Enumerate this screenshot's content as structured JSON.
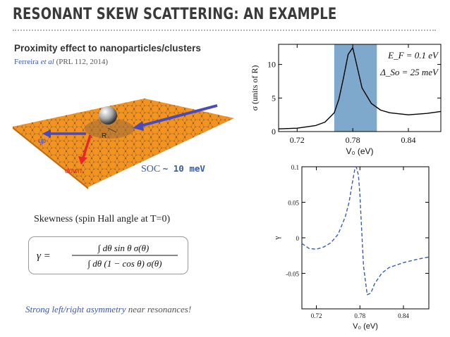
{
  "slide": {
    "title": "RESONANT SKEW SCATTERING: AN EXAMPLE",
    "subtitle": "Proximity effect to nanoparticles/clusters",
    "reference": {
      "authors": "Ferreira ",
      "etal": "et al",
      "journal": " (PRL 112, 2014)"
    },
    "soc_label": "SOC ",
    "soc_value": "~ 10 meV",
    "skewness_label": "Skewness (spin Hall angle at T=0)",
    "conclusion_emph": "Strong left/right asymmetry",
    "conclusion_tail": " near resonances!"
  },
  "illustration": {
    "label_up": "up",
    "label_down": "down",
    "label_R": "R",
    "colors": {
      "sheet": "#f39420",
      "arrow_in": "#4a4ab8",
      "arrow_down": "#e8262a",
      "cluster": "#bfc0c0"
    }
  },
  "formula": {
    "lhs": "γ =",
    "numerator": "∫ dθ  sin θ  σ(θ)",
    "denominator": "∫ dθ (1 − cos θ) σ(θ)"
  },
  "chart_data": [
    {
      "type": "line",
      "xlabel": "V₀  (eV)",
      "ylabel": "σ  (units of R)",
      "xlim": [
        0.7,
        0.875
      ],
      "ylim": [
        0,
        13
      ],
      "xticks": [
        "0.72",
        "0.78",
        "0.84"
      ],
      "yticks": [
        "0",
        "5",
        "10"
      ],
      "annotations": [
        "E_F = 0.1 eV",
        "Δ_So = 25 meV"
      ],
      "shaded_band_x": [
        0.76,
        0.806
      ],
      "series": [
        {
          "style": "solid",
          "x": [
            0.7,
            0.72,
            0.74,
            0.75,
            0.76,
            0.765,
            0.77,
            0.775,
            0.78,
            0.785,
            0.79,
            0.8,
            0.81,
            0.82,
            0.84,
            0.86,
            0.875
          ],
          "y": [
            0.4,
            0.5,
            0.9,
            1.4,
            2.8,
            4.8,
            8.0,
            11.5,
            12.5,
            9.5,
            6.5,
            4.2,
            3.2,
            2.8,
            2.5,
            2.7,
            3.0
          ]
        }
      ],
      "colors": {
        "band": "#7fa9cc",
        "line": "#000000"
      }
    },
    {
      "type": "line",
      "xlabel": "V₀ (eV)",
      "ylabel": "γ",
      "xlim": [
        0.7,
        0.875
      ],
      "ylim": [
        -0.1,
        0.1
      ],
      "xticks": [
        "0.72",
        "0.78",
        "0.84"
      ],
      "yticks": [
        "-0.05",
        "0",
        "0.05",
        "0.1"
      ],
      "series": [
        {
          "style": "dashed",
          "x": [
            0.7,
            0.71,
            0.72,
            0.73,
            0.74,
            0.75,
            0.76,
            0.765,
            0.77,
            0.773,
            0.775,
            0.778,
            0.78,
            0.782,
            0.785,
            0.79,
            0.795,
            0.8,
            0.81,
            0.82,
            0.84,
            0.86,
            0.875
          ],
          "y": [
            -0.008,
            -0.015,
            -0.016,
            -0.013,
            -0.007,
            0.005,
            0.03,
            0.05,
            0.08,
            0.097,
            0.1,
            0.088,
            0.06,
            0.02,
            -0.04,
            -0.08,
            -0.078,
            -0.065,
            -0.05,
            -0.042,
            -0.035,
            -0.03,
            -0.027
          ]
        }
      ],
      "colors": {
        "line": "#3a5fa8"
      }
    }
  ]
}
